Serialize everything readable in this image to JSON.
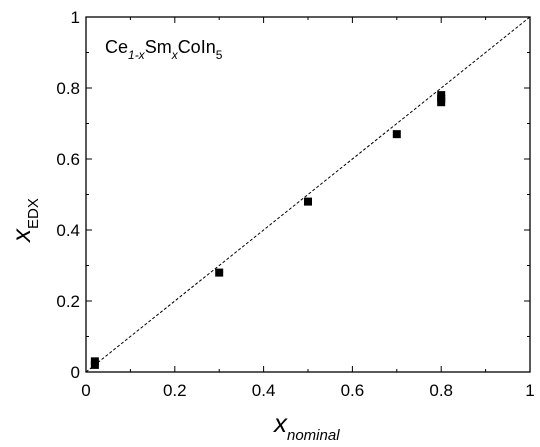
{
  "chart_data": {
    "type": "scatter",
    "title": "",
    "xlabel": {
      "main": "x",
      "sub": "nominal"
    },
    "ylabel": {
      "main": "x",
      "sub": "EDX"
    },
    "xlim": [
      0,
      1
    ],
    "ylim": [
      0,
      1
    ],
    "xticks": [
      "0",
      "0.2",
      "0.4",
      "0.6",
      "0.8",
      "1"
    ],
    "yticks": [
      "0",
      "0.2",
      "0.4",
      "0.6",
      "0.8",
      "1"
    ],
    "grid": false,
    "annotation": {
      "parts": [
        "Ce",
        "1-x",
        "Sm",
        "x",
        "CoIn",
        "5"
      ]
    },
    "series": [
      {
        "marker": "square",
        "color": "#000000",
        "points": [
          {
            "x": 0.02,
            "y": 0.02
          },
          {
            "x": 0.02,
            "y": 0.03
          },
          {
            "x": 0.3,
            "y": 0.28
          },
          {
            "x": 0.5,
            "y": 0.48
          },
          {
            "x": 0.7,
            "y": 0.67
          },
          {
            "x": 0.8,
            "y": 0.76
          },
          {
            "x": 0.8,
            "y": 0.77
          },
          {
            "x": 0.8,
            "y": 0.78
          }
        ]
      }
    ],
    "reference_line": {
      "style": "dashed",
      "from": [
        0,
        0
      ],
      "to": [
        1,
        1
      ],
      "color": "#000000"
    }
  }
}
